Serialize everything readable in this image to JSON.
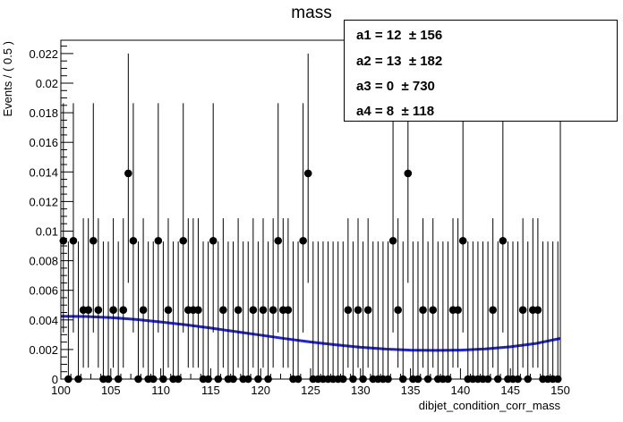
{
  "chart_data": {
    "type": "scatter",
    "title": "mass",
    "xlabel": "dibjet_condition_corr_mass",
    "ylabel": "Events / ( 0.5 )",
    "xlim": [
      100,
      150
    ],
    "ylim": [
      0,
      0.0229
    ],
    "x_ticks": [
      100,
      105,
      110,
      115,
      120,
      125,
      130,
      135,
      140,
      145,
      150
    ],
    "y_ticks": [
      0,
      0.002,
      0.004,
      0.006,
      0.008,
      0.01,
      0.012,
      0.014,
      0.016,
      0.018,
      0.02,
      0.022
    ],
    "y_tick_labels": [
      "0",
      "0.002",
      "0.004",
      "0.006",
      "0.008",
      "0.01",
      "0.012",
      "0.014",
      "0.016",
      "0.018",
      "0.02",
      "0.022"
    ],
    "points": {
      "x": [
        100.25,
        100.75,
        101.25,
        101.75,
        102.25,
        102.75,
        103.25,
        103.75,
        104.25,
        104.75,
        105.25,
        105.75,
        106.25,
        106.75,
        107.25,
        107.75,
        108.25,
        108.75,
        109.25,
        109.75,
        110.25,
        110.75,
        111.25,
        111.75,
        112.25,
        112.75,
        113.25,
        113.75,
        114.25,
        114.75,
        115.25,
        115.75,
        116.25,
        116.75,
        117.25,
        117.75,
        118.25,
        118.75,
        119.25,
        119.75,
        120.25,
        120.75,
        121.25,
        121.75,
        122.25,
        122.75,
        123.25,
        123.75,
        124.25,
        124.75,
        125.25,
        125.75,
        126.25,
        126.75,
        127.25,
        127.75,
        128.25,
        128.75,
        129.25,
        129.75,
        130.25,
        130.75,
        131.25,
        131.75,
        132.25,
        132.75,
        133.25,
        133.75,
        134.25,
        134.75,
        135.25,
        135.75,
        136.25,
        136.75,
        137.25,
        137.75,
        138.25,
        138.75,
        139.25,
        139.75,
        140.25,
        140.75,
        141.25,
        141.75,
        142.25,
        142.75,
        143.25,
        143.75,
        144.25,
        144.75,
        145.25,
        145.75,
        146.25,
        146.75,
        147.25,
        147.75,
        148.25,
        148.75,
        149.25,
        149.75
      ],
      "y": [
        0.00935,
        0,
        0.00935,
        0,
        0.00467,
        0.00467,
        0.00935,
        0.00467,
        0,
        0,
        0.00467,
        0,
        0.00467,
        0.0139,
        0.00935,
        0,
        0.00467,
        0,
        0,
        0.00935,
        0,
        0.00467,
        0,
        0,
        0.00935,
        0.00467,
        0.00467,
        0.00467,
        0,
        0,
        0.00935,
        0,
        0.00467,
        0,
        0,
        0.00467,
        0,
        0,
        0.00467,
        0,
        0.00467,
        0,
        0.00467,
        0.00935,
        0.00467,
        0.00467,
        0,
        0,
        0.00935,
        0.0139,
        0,
        0,
        0,
        0,
        0,
        0,
        0,
        0.00467,
        0,
        0.00467,
        0,
        0.00467,
        0,
        0,
        0,
        0,
        0.00935,
        0.00467,
        0,
        0.0139,
        0,
        0,
        0.00467,
        0,
        0.00467,
        0,
        0,
        0,
        0.00467,
        0.00467,
        0.00935,
        0,
        0,
        0,
        0,
        0,
        0.00467,
        0,
        0.00935,
        0,
        0,
        0,
        0.00467,
        0,
        0.00467,
        0.00467,
        0,
        0,
        0,
        0
      ],
      "err_up": [
        0.0093,
        0.0093,
        0.0093,
        0.0093,
        0.0062,
        0.0062,
        0.0093,
        0.0062,
        0.0093,
        0.0093,
        0.0062,
        0.0093,
        0.0062,
        0.0081,
        0.0093,
        0.0093,
        0.0062,
        0.0093,
        0.0093,
        0.0093,
        0.0093,
        0.0062,
        0.0093,
        0.0093,
        0.0093,
        0.0062,
        0.0062,
        0.0062,
        0.0093,
        0.0093,
        0.0093,
        0.0093,
        0.0062,
        0.0093,
        0.0093,
        0.0062,
        0.0093,
        0.0093,
        0.0062,
        0.0093,
        0.0062,
        0.0093,
        0.0062,
        0.0093,
        0.0062,
        0.0062,
        0.0093,
        0.0093,
        0.0093,
        0.0081,
        0.0093,
        0.0093,
        0.0093,
        0.0093,
        0.0093,
        0.0093,
        0.0093,
        0.0062,
        0.0093,
        0.0062,
        0.0093,
        0.0062,
        0.0093,
        0.0093,
        0.0093,
        0.0093,
        0.0093,
        0.0062,
        0.0093,
        0.0081,
        0.0093,
        0.0093,
        0.0062,
        0.0093,
        0.0062,
        0.0093,
        0.0093,
        0.0093,
        0.0062,
        0.0062,
        0.0093,
        0.0093,
        0.0093,
        0.0093,
        0.0093,
        0.0093,
        0.0062,
        0.0093,
        0.0093,
        0.0093,
        0.0093,
        0.0093,
        0.0062,
        0.0093,
        0.0062,
        0.0062,
        0.0093,
        0.0093,
        0.0093,
        0.0093
      ],
      "err_down": [
        0.0062,
        0,
        0.0062,
        0,
        0.0039,
        0.0039,
        0.0062,
        0.0039,
        0,
        0,
        0.0039,
        0,
        0.0039,
        0.0074,
        0.0062,
        0,
        0.0039,
        0,
        0,
        0.0062,
        0,
        0.0039,
        0,
        0,
        0.0062,
        0.0039,
        0.0039,
        0.0039,
        0,
        0,
        0.0062,
        0,
        0.0039,
        0,
        0,
        0.0039,
        0,
        0,
        0.0039,
        0,
        0.0039,
        0,
        0.0039,
        0.0062,
        0.0039,
        0.0039,
        0,
        0,
        0.0062,
        0.0074,
        0,
        0,
        0,
        0,
        0,
        0,
        0,
        0.0039,
        0,
        0.0039,
        0,
        0.0039,
        0,
        0,
        0,
        0,
        0.0062,
        0.0039,
        0,
        0.0074,
        0,
        0,
        0.0039,
        0,
        0.0039,
        0,
        0,
        0,
        0.0039,
        0.0039,
        0.0062,
        0,
        0,
        0,
        0,
        0,
        0.0039,
        0,
        0.0062,
        0,
        0,
        0,
        0.0039,
        0,
        0.0039,
        0.0039,
        0,
        0,
        0,
        0
      ]
    },
    "fit_curve": {
      "x": [
        100,
        102.5,
        105,
        107.5,
        110,
        112.5,
        115,
        117.5,
        120,
        122.5,
        125,
        127.5,
        130,
        132.5,
        135,
        137.5,
        140,
        142.5,
        145,
        147.5,
        150
      ],
      "y": [
        0.00425,
        0.00423,
        0.00416,
        0.00403,
        0.00386,
        0.00367,
        0.00345,
        0.00321,
        0.00297,
        0.00273,
        0.00251,
        0.00232,
        0.00215,
        0.00203,
        0.00196,
        0.00194,
        0.00196,
        0.00204,
        0.00218,
        0.0024,
        0.00275
      ]
    },
    "colors": {
      "points": "#000000",
      "fit": "#1f23d6"
    },
    "stats_box": [
      {
        "label": "a1 = ",
        "value": "12",
        "error": "± 156"
      },
      {
        "label": "a2 = ",
        "value": "13",
        "error": "± 182"
      },
      {
        "label": "a3 = ",
        "value": "0",
        "error": "± 730"
      },
      {
        "label": "a4 = ",
        "value": "8",
        "error": "± 118"
      }
    ]
  }
}
